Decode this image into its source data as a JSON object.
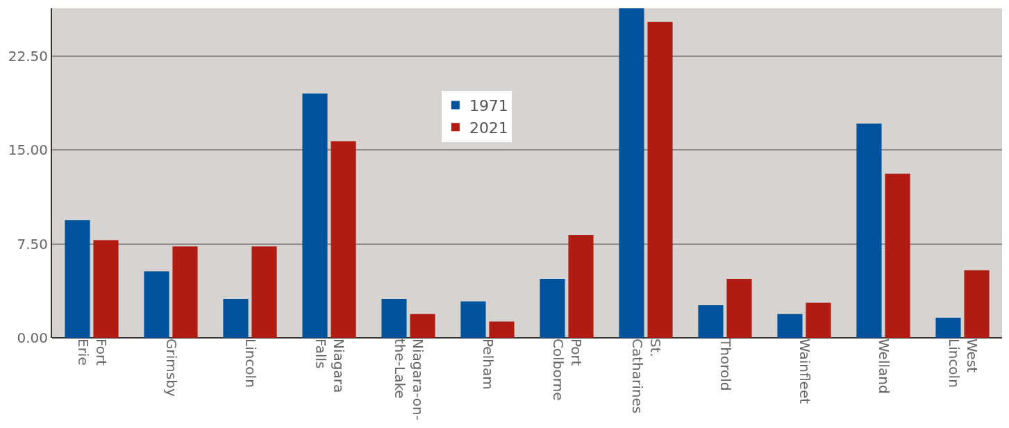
{
  "chart_data": {
    "type": "bar",
    "categories": [
      "Fort Erie",
      "Grimsby",
      "Lincoln",
      "Niagara Falls",
      "Niagara-on-the-Lake",
      "Pelham",
      "Port Colborne",
      "St. Catharines",
      "Thorold",
      "Wainfleet",
      "Welland",
      "West Lincoln"
    ],
    "series": [
      {
        "name": "1971",
        "color": "#00529c",
        "values": [
          9.4,
          5.3,
          3.1,
          19.5,
          3.1,
          2.9,
          4.7,
          26.3,
          2.6,
          1.9,
          17.1,
          1.6
        ]
      },
      {
        "name": "2021",
        "color": "#b01c12",
        "values": [
          7.8,
          7.3,
          7.3,
          15.7,
          1.9,
          1.3,
          8.2,
          25.2,
          4.7,
          2.8,
          13.1,
          5.4
        ]
      }
    ],
    "ylim": [
      0,
      26.3
    ],
    "yticks": [
      {
        "value": 0,
        "label": "0.00"
      },
      {
        "value": 7.5,
        "label": "7.50"
      },
      {
        "value": 15,
        "label": "15.00"
      },
      {
        "value": 22.5,
        "label": "22.50"
      }
    ],
    "grid": "y",
    "legend": "top center"
  }
}
